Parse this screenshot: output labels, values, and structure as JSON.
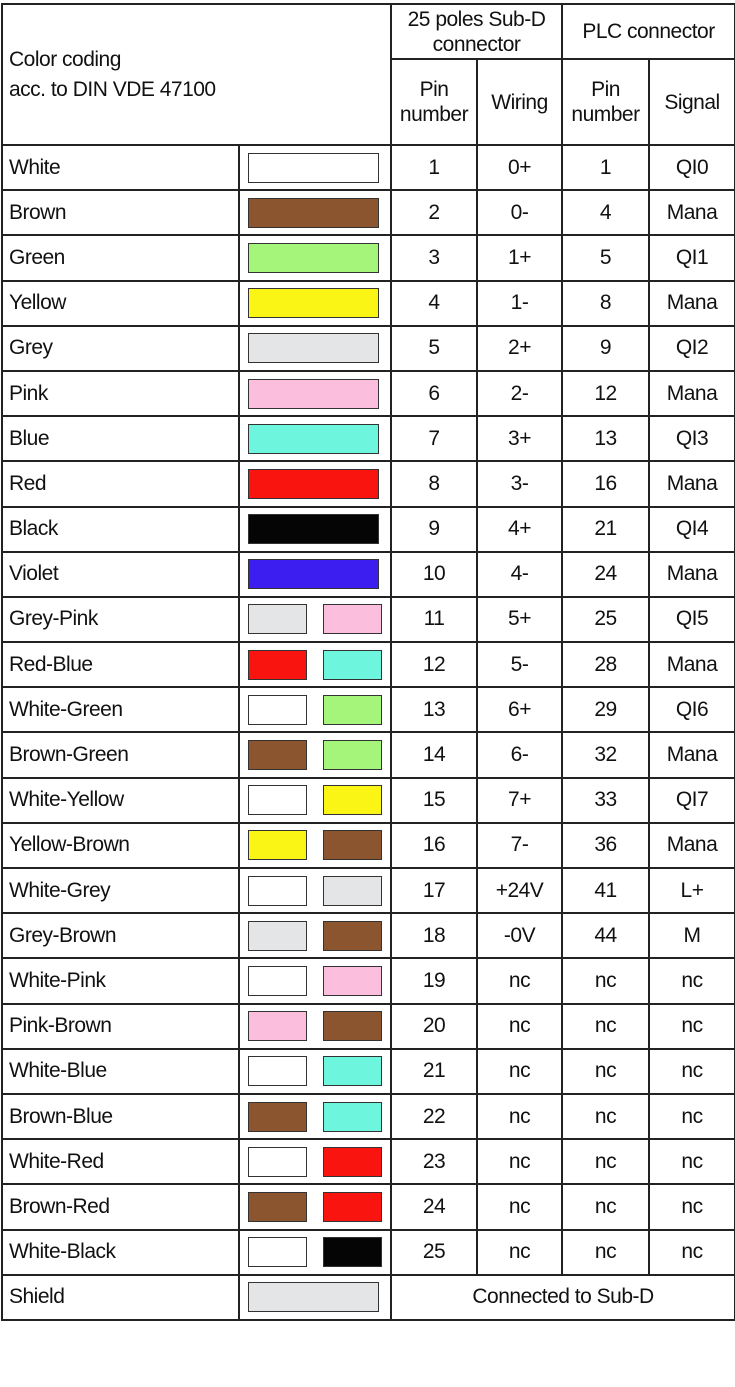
{
  "header": {
    "title_line1": "Color coding",
    "title_line2": "acc. to DIN VDE 47100",
    "subd_group": "25 poles Sub-D connector",
    "plc_group": "PLC connector",
    "subd_pin": "Pin number",
    "subd_wiring": "Wiring",
    "plc_pin": "Pin number",
    "plc_signal": "Signal"
  },
  "colors": {
    "White": "#ffffff",
    "Brown": "#8b5530",
    "Green": "#a5f57a",
    "Yellow": "#faf514",
    "Grey": "#e3e5e6",
    "Pink": "#fbbedd",
    "Blue": "#6ef5dd",
    "Red": "#fa1410",
    "Black": "#050505",
    "Violet": "#3c1ef0"
  },
  "rows": [
    {
      "name": "White",
      "swatches": [
        "White"
      ],
      "pin": "1",
      "wiring": "0+",
      "plc_pin": "1",
      "signal": "QI0"
    },
    {
      "name": "Brown",
      "swatches": [
        "Brown"
      ],
      "pin": "2",
      "wiring": "0-",
      "plc_pin": "4",
      "signal": "Mana"
    },
    {
      "name": "Green",
      "swatches": [
        "Green"
      ],
      "pin": "3",
      "wiring": "1+",
      "plc_pin": "5",
      "signal": "QI1"
    },
    {
      "name": "Yellow",
      "swatches": [
        "Yellow"
      ],
      "pin": "4",
      "wiring": "1-",
      "plc_pin": "8",
      "signal": "Mana"
    },
    {
      "name": "Grey",
      "swatches": [
        "Grey"
      ],
      "pin": "5",
      "wiring": "2+",
      "plc_pin": "9",
      "signal": "QI2"
    },
    {
      "name": "Pink",
      "swatches": [
        "Pink"
      ],
      "pin": "6",
      "wiring": "2-",
      "plc_pin": "12",
      "signal": "Mana"
    },
    {
      "name": "Blue",
      "swatches": [
        "Blue"
      ],
      "pin": "7",
      "wiring": "3+",
      "plc_pin": "13",
      "signal": "QI3"
    },
    {
      "name": "Red",
      "swatches": [
        "Red"
      ],
      "pin": "8",
      "wiring": "3-",
      "plc_pin": "16",
      "signal": "Mana"
    },
    {
      "name": "Black",
      "swatches": [
        "Black"
      ],
      "pin": "9",
      "wiring": "4+",
      "plc_pin": "21",
      "signal": "QI4"
    },
    {
      "name": "Violet",
      "swatches": [
        "Violet"
      ],
      "pin": "10",
      "wiring": "4-",
      "plc_pin": "24",
      "signal": "Mana"
    },
    {
      "name": "Grey-Pink",
      "swatches": [
        "Grey",
        "Pink"
      ],
      "pin": "11",
      "wiring": "5+",
      "plc_pin": "25",
      "signal": "QI5"
    },
    {
      "name": "Red-Blue",
      "swatches": [
        "Red",
        "Blue"
      ],
      "pin": "12",
      "wiring": "5-",
      "plc_pin": "28",
      "signal": "Mana"
    },
    {
      "name": "White-Green",
      "swatches": [
        "White",
        "Green"
      ],
      "pin": "13",
      "wiring": "6+",
      "plc_pin": "29",
      "signal": "QI6"
    },
    {
      "name": "Brown-Green",
      "swatches": [
        "Brown",
        "Green"
      ],
      "pin": "14",
      "wiring": "6-",
      "plc_pin": "32",
      "signal": "Mana"
    },
    {
      "name": "White-Yellow",
      "swatches": [
        "White",
        "Yellow"
      ],
      "pin": "15",
      "wiring": "7+",
      "plc_pin": "33",
      "signal": "QI7"
    },
    {
      "name": "Yellow-Brown",
      "swatches": [
        "Yellow",
        "Brown"
      ],
      "pin": "16",
      "wiring": "7-",
      "plc_pin": "36",
      "signal": "Mana"
    },
    {
      "name": "White-Grey",
      "swatches": [
        "White",
        "Grey"
      ],
      "pin": "17",
      "wiring": "+24V",
      "plc_pin": "41",
      "signal": "L+"
    },
    {
      "name": "Grey-Brown",
      "swatches": [
        "Grey",
        "Brown"
      ],
      "pin": "18",
      "wiring": "-0V",
      "plc_pin": "44",
      "signal": "M"
    },
    {
      "name": "White-Pink",
      "swatches": [
        "White",
        "Pink"
      ],
      "pin": "19",
      "wiring": "nc",
      "plc_pin": "nc",
      "signal": "nc"
    },
    {
      "name": "Pink-Brown",
      "swatches": [
        "Pink",
        "Brown"
      ],
      "pin": "20",
      "wiring": "nc",
      "plc_pin": "nc",
      "signal": "nc"
    },
    {
      "name": "White-Blue",
      "swatches": [
        "White",
        "Blue"
      ],
      "pin": "21",
      "wiring": "nc",
      "plc_pin": "nc",
      "signal": "nc"
    },
    {
      "name": "Brown-Blue",
      "swatches": [
        "Brown",
        "Blue"
      ],
      "pin": "22",
      "wiring": "nc",
      "plc_pin": "nc",
      "signal": "nc"
    },
    {
      "name": "White-Red",
      "swatches": [
        "White",
        "Red"
      ],
      "pin": "23",
      "wiring": "nc",
      "plc_pin": "nc",
      "signal": "nc"
    },
    {
      "name": "Brown-Red",
      "swatches": [
        "Brown",
        "Red"
      ],
      "pin": "24",
      "wiring": "nc",
      "plc_pin": "nc",
      "signal": "nc"
    },
    {
      "name": "White-Black",
      "swatches": [
        "White",
        "Black"
      ],
      "pin": "25",
      "wiring": "nc",
      "plc_pin": "nc",
      "signal": "nc"
    }
  ],
  "shield": {
    "name": "Shield",
    "swatch": "Grey",
    "note": "Connected to Sub-D"
  }
}
